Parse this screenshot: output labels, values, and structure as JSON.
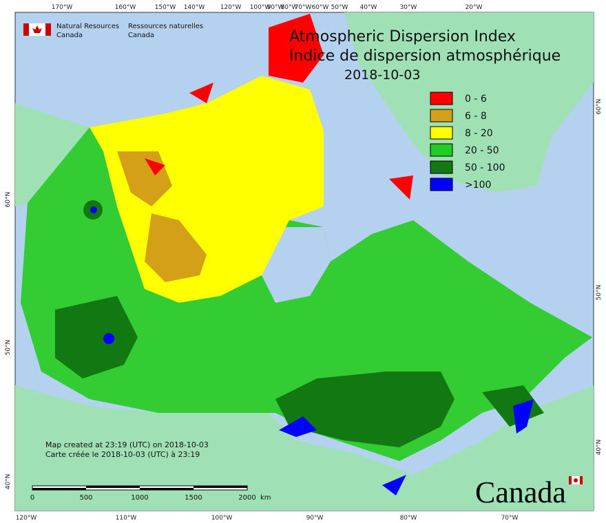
{
  "header": {
    "agency_en": "Natural Resources",
    "agency_en_country": "Canada",
    "agency_fr": "Ressources naturelles",
    "agency_fr_country": "Canada"
  },
  "title": {
    "en": "Atmospheric Dispersion Index",
    "fr": "Indice de dispersion atmosphérique",
    "date": "2018-10-03"
  },
  "legend": [
    {
      "label": "0 - 6",
      "color": "#ff0000"
    },
    {
      "label": "6 - 8",
      "color": "#d4a017"
    },
    {
      "label": "8 - 20",
      "color": "#ffff00"
    },
    {
      "label": "20 - 50",
      "color": "#22cc22"
    },
    {
      "label": "50 - 100",
      "color": "#127812"
    },
    {
      "label": ">100",
      "color": "#0000ff"
    }
  ],
  "top_axis": [
    "170°W",
    "160°W",
    "150°W",
    "140°W",
    "120°W",
    "100°W",
    "90°W",
    "80°W",
    "70°W",
    "60°W",
    "50°W",
    "40°W",
    "30°W",
    "20°W"
  ],
  "bottom_axis": [
    "120°W",
    "110°W",
    "100°W",
    "90°W",
    "80°W",
    "70°W"
  ],
  "left_axis": [
    "60°N",
    "50°N",
    "40°N"
  ],
  "right_axis": [
    "60°N",
    "50°N",
    "40°N"
  ],
  "credits": [
    "Map created at 23:19 (UTC) on 2018-10-03",
    "Carte créée le 2018-10-03 (UTC) à 23:19"
  ],
  "scale_bar": {
    "ticks": [
      "0",
      "500",
      "1000",
      "1500",
      "2000"
    ],
    "unit": "km"
  },
  "wordmark": "Canada"
}
